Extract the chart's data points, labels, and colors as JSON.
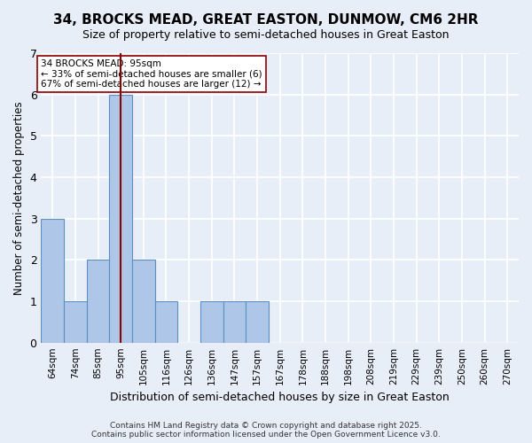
{
  "title": "34, BROCKS MEAD, GREAT EASTON, DUNMOW, CM6 2HR",
  "subtitle": "Size of property relative to semi-detached houses in Great Easton",
  "xlabel": "Distribution of semi-detached houses by size in Great Easton",
  "ylabel": "Number of semi-detached properties",
  "bins": [
    "64sqm",
    "74sqm",
    "85sqm",
    "95sqm",
    "105sqm",
    "116sqm",
    "126sqm",
    "136sqm",
    "147sqm",
    "157sqm",
    "167sqm",
    "178sqm",
    "188sqm",
    "198sqm",
    "208sqm",
    "219sqm",
    "229sqm",
    "239sqm",
    "250sqm",
    "260sqm",
    "270sqm"
  ],
  "counts": [
    3,
    1,
    2,
    6,
    2,
    1,
    0,
    1,
    1,
    1,
    0,
    0,
    0,
    0,
    0,
    0,
    0,
    0,
    0,
    0,
    0
  ],
  "subject_bin_index": 3,
  "subject_label": "34 BROCKS MEAD: 95sqm",
  "smaller_pct": 33,
  "smaller_count": 6,
  "larger_pct": 67,
  "larger_count": 12,
  "bar_color": "#aec6e8",
  "bar_edge_color": "#5a8fc2",
  "subject_line_color": "#8b0000",
  "annotation_box_color": "#ffffff",
  "annotation_box_edge": "#8b0000",
  "background_color": "#e8eef7",
  "grid_color": "#ffffff",
  "ylim": [
    0,
    7
  ],
  "footer": "Contains HM Land Registry data © Crown copyright and database right 2025.\nContains public sector information licensed under the Open Government Licence v3.0."
}
